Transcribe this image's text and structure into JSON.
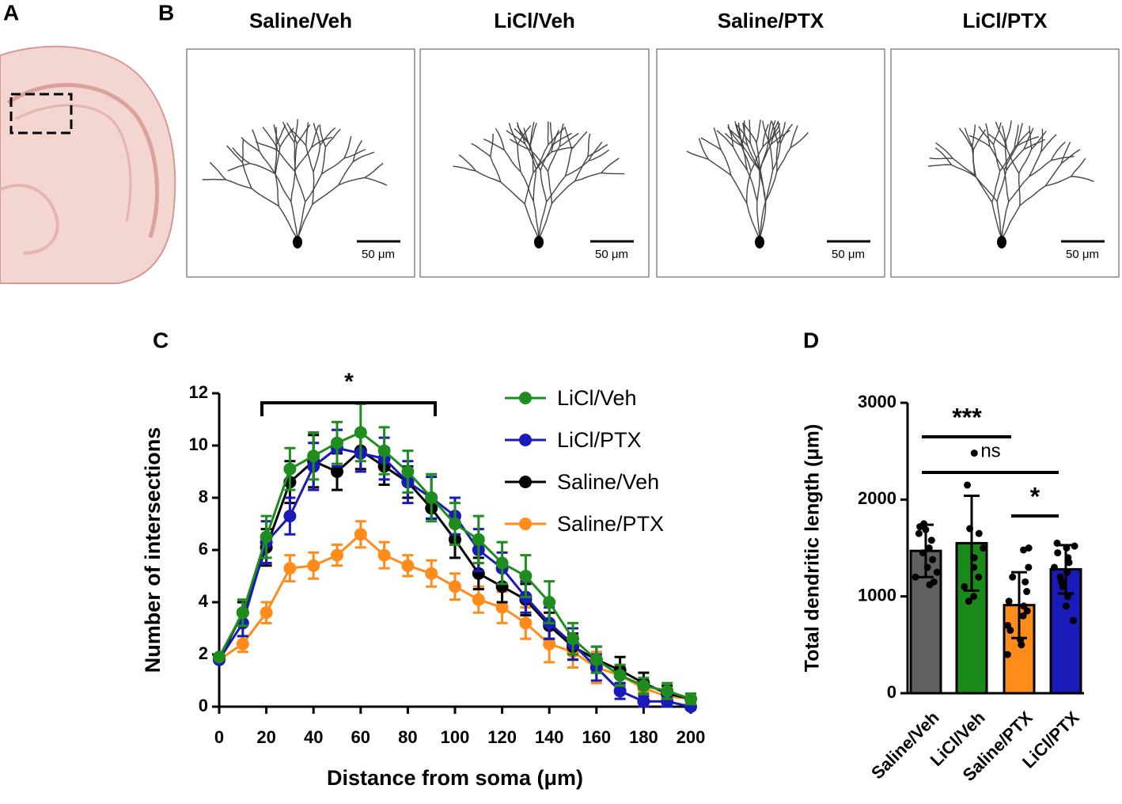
{
  "panel_labels": [
    "A",
    "B",
    "C",
    "D"
  ],
  "tracings": {
    "titles": [
      "Saline/Veh",
      "LiCl/Veh",
      "Saline/PTX",
      "LiCl/PTX"
    ],
    "scale_label": "50 μm"
  },
  "chart_data": [
    {
      "type": "line",
      "xlabel": "Distance from soma (μm)",
      "ylabel": "Number of intersections",
      "x": [
        0,
        10,
        20,
        30,
        40,
        50,
        60,
        70,
        80,
        90,
        100,
        110,
        120,
        130,
        140,
        150,
        160,
        170,
        180,
        190,
        200
      ],
      "xlim": [
        0,
        200
      ],
      "xticks": [
        0,
        20,
        40,
        60,
        80,
        100,
        120,
        140,
        160,
        180,
        200
      ],
      "ylim": [
        0,
        12
      ],
      "yticks": [
        0,
        2,
        4,
        6,
        8,
        10,
        12
      ],
      "series": [
        {
          "name": "LiCl/Veh",
          "color": "#1e8c1e",
          "values": [
            1.9,
            3.6,
            6.5,
            9.1,
            9.6,
            10.1,
            10.5,
            9.8,
            9.0,
            8.0,
            7.0,
            6.4,
            5.5,
            5.0,
            4.0,
            2.6,
            1.8,
            1.2,
            0.8,
            0.6,
            0.3
          ],
          "errors": [
            0.1,
            0.5,
            0.8,
            0.8,
            0.9,
            0.8,
            1.1,
            0.9,
            0.8,
            0.9,
            0.8,
            0.9,
            0.8,
            0.8,
            0.8,
            0.6,
            0.5,
            0.4,
            0.3,
            0.3,
            0.2
          ]
        },
        {
          "name": "LiCl/PTX",
          "color": "#1a1ab8",
          "values": [
            1.8,
            3.2,
            6.3,
            7.3,
            9.2,
            9.9,
            9.7,
            9.5,
            8.6,
            8.0,
            7.3,
            6.0,
            5.3,
            4.2,
            3.2,
            2.4,
            1.5,
            0.6,
            0.2,
            0.2,
            0.0
          ],
          "errors": [
            0.1,
            0.5,
            0.8,
            0.7,
            0.9,
            0.7,
            0.7,
            0.8,
            0.8,
            0.8,
            0.7,
            0.8,
            0.6,
            0.6,
            0.6,
            0.6,
            0.5,
            0.3,
            0.2,
            0.2,
            0.1
          ]
        },
        {
          "name": "Saline/Veh",
          "color": "#000000",
          "values": [
            1.8,
            3.6,
            6.1,
            8.6,
            9.4,
            9.0,
            9.8,
            9.2,
            8.6,
            7.6,
            6.4,
            5.1,
            4.6,
            4.1,
            3.1,
            2.3,
            1.8,
            1.4,
            0.9,
            0.5,
            0.3
          ],
          "errors": [
            0.1,
            0.4,
            0.7,
            0.8,
            1.0,
            0.7,
            0.7,
            0.7,
            0.6,
            0.4,
            0.7,
            0.6,
            0.6,
            0.6,
            0.5,
            0.5,
            0.5,
            0.5,
            0.4,
            0.3,
            0.2
          ]
        },
        {
          "name": "Saline/PTX",
          "color": "#ff8c1a",
          "values": [
            1.8,
            2.4,
            3.6,
            5.3,
            5.4,
            5.8,
            6.6,
            5.8,
            5.4,
            5.1,
            4.6,
            4.1,
            3.8,
            3.2,
            2.4,
            2.1,
            1.5,
            1.2,
            0.7,
            0.4,
            0.3
          ],
          "errors": [
            0.1,
            0.3,
            0.4,
            0.5,
            0.5,
            0.4,
            0.5,
            0.5,
            0.4,
            0.5,
            0.5,
            0.5,
            0.6,
            0.6,
            0.7,
            0.6,
            0.6,
            0.4,
            0.3,
            0.3,
            0.2
          ]
        }
      ],
      "annotations": [
        "*"
      ]
    },
    {
      "type": "bar",
      "ylabel": "Total dendritic length (μm)",
      "categories": [
        "Saline/Veh",
        "LiCl/Veh",
        "Saline/PTX",
        "LiCl/PTX"
      ],
      "values": [
        1470,
        1550,
        910,
        1280
      ],
      "errors": [
        270,
        490,
        340,
        250
      ],
      "colors": [
        "#606060",
        "#1a8a1a",
        "#ff8c1a",
        "#1a1ab8"
      ],
      "points": [
        [
          1750,
          1720,
          1690,
          1650,
          1580,
          1500,
          1450,
          1380,
          1300,
          1250,
          1200,
          1150,
          1120
        ],
        [
          2480,
          2150,
          1700,
          1650,
          1500,
          1400,
          1300,
          1200,
          1100,
          1000,
          950
        ],
        [
          1500,
          1480,
          1300,
          1200,
          1150,
          1050,
          950,
          900,
          850,
          800,
          700,
          650,
          550,
          500,
          400
        ],
        [
          1550,
          1520,
          1500,
          1450,
          1400,
          1350,
          1300,
          1250,
          1200,
          1150,
          1100,
          1000,
          900,
          750
        ]
      ],
      "ylim": [
        0,
        3000
      ],
      "yticks": [
        0,
        1000,
        2000,
        3000
      ],
      "annotations": [
        "***",
        "ns",
        "*"
      ]
    }
  ]
}
